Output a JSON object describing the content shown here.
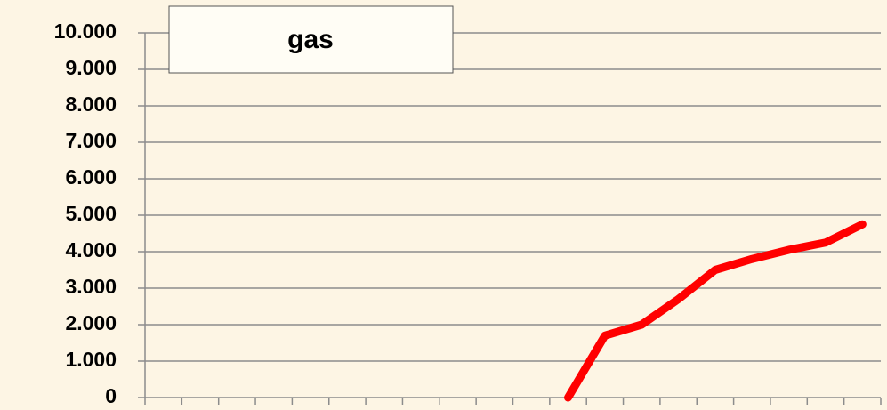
{
  "chart_data": {
    "type": "line",
    "title": "gas",
    "categories": [
      null,
      null,
      null,
      null,
      null,
      null,
      null,
      null,
      null,
      null,
      null,
      null,
      null,
      null,
      null,
      null,
      null,
      null,
      null,
      null
    ],
    "series": [
      {
        "name": null,
        "color": "#ff0000",
        "values": [
          null,
          null,
          null,
          null,
          null,
          null,
          null,
          null,
          null,
          null,
          null,
          0,
          1700,
          2000,
          2700,
          3500,
          3800,
          4050,
          4250,
          4750
        ]
      }
    ],
    "ylim": [
      0,
      10000
    ],
    "yticks": [
      0,
      {
        "value": 1000,
        "label": "1.000"
      },
      {
        "value": 2000,
        "label": "2.000"
      },
      {
        "value": 3000,
        "label": "3.000"
      },
      {
        "value": 4000,
        "label": "4.000"
      },
      {
        "value": 5000,
        "label": "5.000"
      },
      {
        "value": 6000,
        "label": "6.000"
      },
      {
        "value": 7000,
        "label": "7.000"
      },
      {
        "value": 8000,
        "label": "8.000"
      },
      {
        "value": 9000,
        "label": "9.000"
      },
      {
        "value": 10000,
        "label": "10.000"
      }
    ],
    "grid": true
  }
}
